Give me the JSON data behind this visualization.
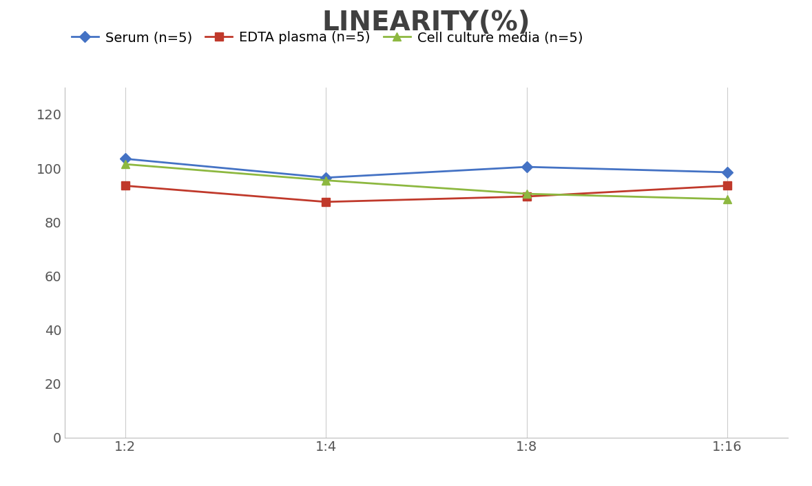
{
  "title": "LINEARITY(%)",
  "title_fontsize": 28,
  "title_fontweight": "bold",
  "title_color": "#404040",
  "x_labels": [
    "1:2",
    "1:4",
    "1:8",
    "1:16"
  ],
  "x_positions": [
    0,
    1,
    2,
    3
  ],
  "series": [
    {
      "label": "Serum (n=5)",
      "values": [
        103.5,
        96.5,
        100.5,
        98.5
      ],
      "color": "#4472C4",
      "marker": "D",
      "markersize": 8,
      "linewidth": 2.0
    },
    {
      "label": "EDTA plasma (n=5)",
      "values": [
        93.5,
        87.5,
        89.5,
        93.5
      ],
      "color": "#C0392B",
      "marker": "s",
      "markersize": 8,
      "linewidth": 2.0
    },
    {
      "label": "Cell culture media (n=5)",
      "values": [
        101.5,
        95.5,
        90.5,
        88.5
      ],
      "color": "#8DB840",
      "marker": "^",
      "markersize": 8,
      "linewidth": 2.0
    }
  ],
  "ylim": [
    0,
    130
  ],
  "yticks": [
    0,
    20,
    40,
    60,
    80,
    100,
    120
  ],
  "grid_color": "#CCCCCC",
  "grid_linewidth": 0.8,
  "background_color": "#FFFFFF",
  "legend_fontsize": 14,
  "tick_fontsize": 14,
  "axis_linecolor": "#BBBBBB",
  "tick_color": "#555555"
}
